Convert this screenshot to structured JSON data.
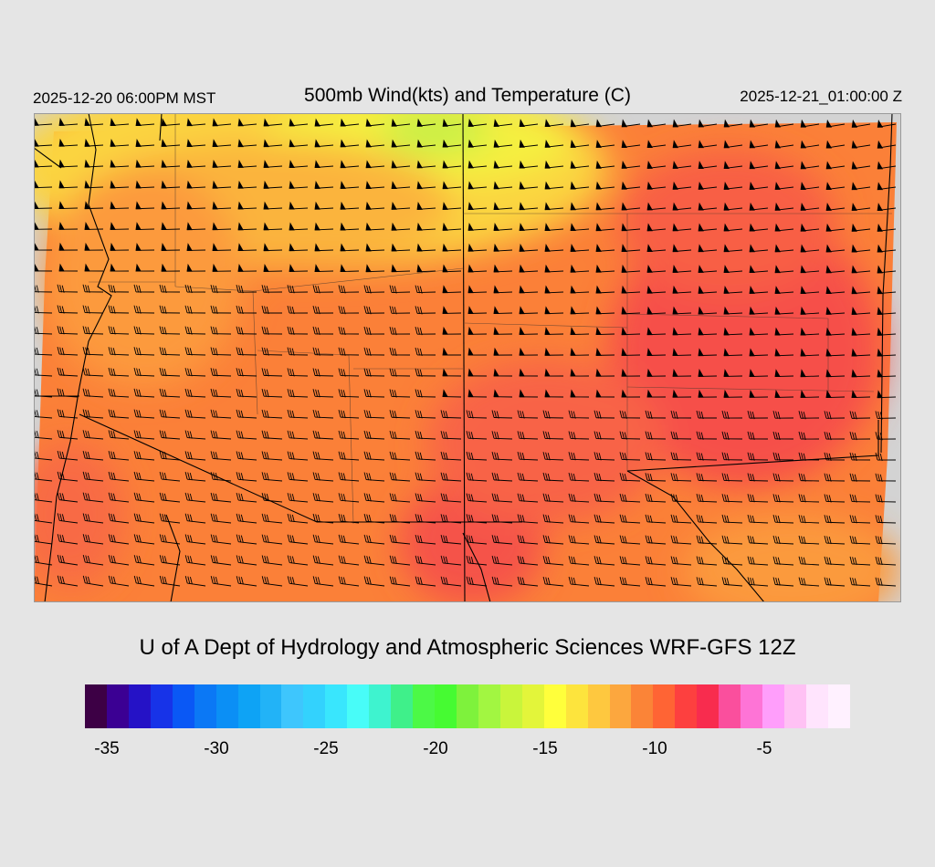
{
  "header": {
    "valid_local": "2025-12-20 06:00PM MST",
    "title": "500mb Wind(kts) and Temperature (C)",
    "valid_utc": "2025-12-21_01:00:00 Z"
  },
  "credit": "U of A Dept of Hydrology and Atmospheric Sciences WRF-GFS 12Z",
  "colorbar": {
    "colors": [
      "#3d0045",
      "#3b0093",
      "#2512c6",
      "#1733e8",
      "#0a58f5",
      "#0b78f5",
      "#0b8ff5",
      "#0ea3f5",
      "#22b3f7",
      "#3ec6fd",
      "#33d2fd",
      "#39e6fd",
      "#48fcf8",
      "#3ef3cf",
      "#3ff08a",
      "#4cf946",
      "#46fb32",
      "#7ef23c",
      "#a2f641",
      "#c9f53b",
      "#e3f53a",
      "#ffff3b",
      "#fde43d",
      "#fec83f",
      "#fca73e",
      "#fb8437",
      "#ff6434",
      "#fd403f",
      "#f82c4e",
      "#fa4f9d",
      "#fe74d6",
      "#ff9efb",
      "#ffc1f4",
      "#ffe4fd",
      "#fff1ff"
    ],
    "tick_labels": [
      "-35",
      "-30",
      "-25",
      "-20",
      "-15",
      "-10",
      "-5"
    ]
  },
  "map": {
    "field": "500mb temperature (C) with wind barbs (kts)",
    "palette": {
      "warm_red": "#f5474a",
      "orange": "#fc7f38",
      "light_orange": "#fda13f",
      "yellow": "#fbe744",
      "green": "#c8f245",
      "nodata": "#d3d3d3"
    }
  }
}
